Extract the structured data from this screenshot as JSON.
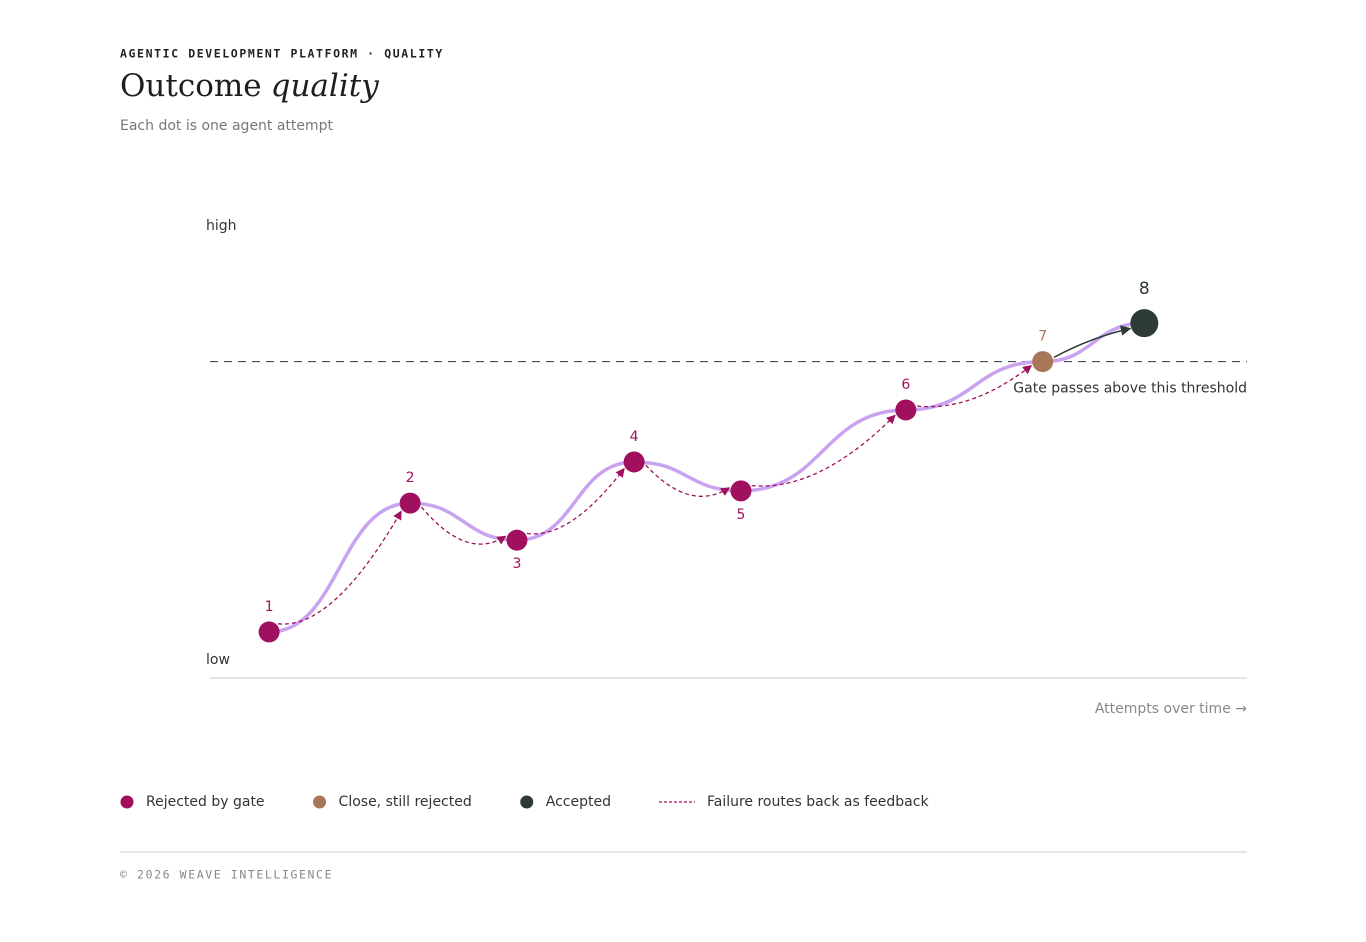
{
  "chart_data": {
    "type": "line",
    "eyebrow": "AGENTIC DEVELOPMENT PLATFORM · QUALITY",
    "title": "Outcome",
    "title_emphasis": "quality",
    "subtitle": "Each dot is one agent attempt",
    "x_label": "Attempts over time →",
    "xlim": [
      0,
      100
    ],
    "ylim": [
      0,
      100
    ],
    "yticks": [
      {
        "value": 4,
        "label": "low"
      },
      {
        "value": 100,
        "label": "high"
      }
    ],
    "x": [
      5.7,
      19.3,
      29.6,
      40.9,
      51.2,
      67.1,
      80.3,
      90.1
    ],
    "values": [
      10.2,
      38.7,
      30.5,
      47.8,
      41.4,
      59.3,
      70,
      78.5
    ],
    "labels": [
      "1",
      "2",
      "3",
      "4",
      "5",
      "6",
      "7",
      "8"
    ],
    "point_colors": [
      "#a0105e",
      "#a0105e",
      "#a0105e",
      "#a0105e",
      "#a0105e",
      "#a0105e",
      "#a87658",
      "#2e3b35"
    ],
    "trend_color": "#c9a3f0",
    "threshold": {
      "value": 70,
      "label": "Gate passes above this threshold"
    },
    "legend": [
      {
        "name": "Rejected by gate",
        "color": "#a0105e",
        "style": "dot"
      },
      {
        "name": "Close, still rejected",
        "color": "#a87658",
        "style": "dot"
      },
      {
        "name": "Accepted",
        "color": "#2e3b35",
        "style": "dot"
      },
      {
        "name": "Failure routes back as feedback",
        "color": "#a0105e",
        "style": "dashed"
      }
    ],
    "footer": "© 2026 WEAVE INTELLIGENCE"
  }
}
